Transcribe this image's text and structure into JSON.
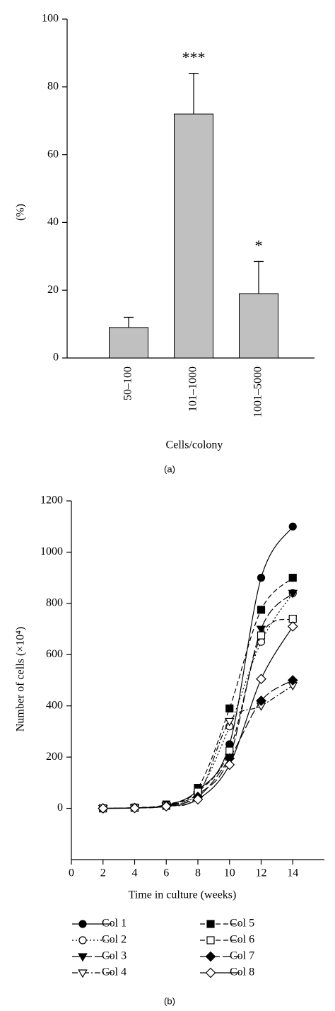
{
  "chart_data": [
    {
      "type": "bar",
      "caption": "(a)",
      "x_label": "Cells/colony",
      "y_label": "(%)",
      "categories": [
        "50–100",
        "101–1000",
        "1001–5000"
      ],
      "values": [
        9,
        72,
        19
      ],
      "errors": [
        3,
        12,
        9.5
      ],
      "annotations": [
        null,
        "***",
        "*"
      ],
      "color": "#c0c0c0",
      "ylim": [
        0,
        100
      ],
      "yticks": [
        0,
        20,
        40,
        60,
        80,
        100
      ]
    },
    {
      "type": "line",
      "caption": "(b)",
      "x_label": "Time in culture (weeks)",
      "y_label": "Number of cells (×10⁴)",
      "x": [
        2,
        4,
        6,
        8,
        10,
        12,
        14
      ],
      "series": [
        {
          "name": "Col 1",
          "color": "#000000",
          "marker": "circle",
          "filled": true,
          "dash": "solid",
          "values": [
            0,
            2,
            12,
            70,
            250,
            900,
            1100
          ]
        },
        {
          "name": "Col 2",
          "color": "#000000",
          "marker": "circle",
          "filled": false,
          "dash": "dotted",
          "values": [
            0,
            2,
            10,
            60,
            320,
            650,
            840
          ]
        },
        {
          "name": "Col 3",
          "color": "#000000",
          "marker": "triangle-down",
          "filled": true,
          "dash": "long-dash",
          "values": [
            0,
            2,
            10,
            55,
            200,
            700,
            840
          ]
        },
        {
          "name": "Col 4",
          "color": "#000000",
          "marker": "triangle-down",
          "filled": false,
          "dash": "dash-dot",
          "values": [
            0,
            2,
            8,
            50,
            340,
            400,
            480
          ]
        },
        {
          "name": "Col 5",
          "color": "#000000",
          "marker": "square",
          "filled": true,
          "dash": "dashed",
          "values": [
            0,
            3,
            15,
            80,
            390,
            775,
            900
          ]
        },
        {
          "name": "Col 6",
          "color": "#000000",
          "marker": "square",
          "filled": false,
          "dash": "dashed",
          "values": [
            0,
            2,
            10,
            65,
            225,
            675,
            740
          ]
        },
        {
          "name": "Col 7",
          "color": "#000000",
          "marker": "diamond",
          "filled": true,
          "dash": "long-dash",
          "values": [
            0,
            2,
            10,
            45,
            195,
            420,
            500
          ]
        },
        {
          "name": "Col 8",
          "color": "#000000",
          "marker": "diamond",
          "filled": false,
          "dash": "solid",
          "values": [
            0,
            1,
            8,
            35,
            170,
            505,
            710
          ]
        }
      ],
      "xlim": [
        0,
        16
      ],
      "xticks": [
        0,
        2,
        4,
        6,
        8,
        10,
        12,
        14
      ],
      "ylim": [
        -200,
        1200
      ],
      "yticks": [
        0,
        200,
        400,
        600,
        800,
        1000,
        1200
      ]
    }
  ]
}
